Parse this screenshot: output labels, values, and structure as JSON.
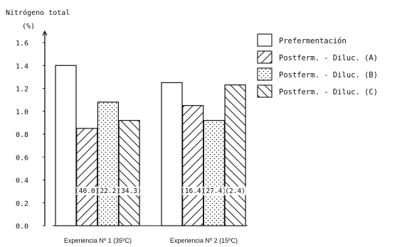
{
  "chart_data": {
    "type": "bar",
    "ylabel_line1": "Nitrógeno total",
    "ylabel_line2": "(%)",
    "ylim": [
      0,
      1.6
    ],
    "yticks": [
      "0.0",
      "0.2",
      "0.4",
      "0.6",
      "0.8",
      "1.0",
      "1.2",
      "1.4",
      "1.6"
    ],
    "categories": [
      "Experiencia Nº 1 (35ºC)",
      "Experiencia Nº 2 (15ºC)"
    ],
    "series": [
      {
        "name": "Prefermentación",
        "values": [
          1.4,
          1.25
        ],
        "labels": [
          "",
          ""
        ],
        "pattern": "blank"
      },
      {
        "name": "Postferm. - Diluc. (A)",
        "values": [
          0.85,
          1.05
        ],
        "labels": [
          "(40.0)",
          "(16.4)"
        ],
        "pattern": "diag"
      },
      {
        "name": "Postferm. - Diluc. (B)",
        "values": [
          1.08,
          0.92
        ],
        "labels": [
          "(22.2)",
          "(27.4)"
        ],
        "pattern": "dots"
      },
      {
        "name": "Postferm. - Diluc. (C)",
        "values": [
          0.92,
          1.23
        ],
        "labels": [
          "(34.3)",
          "(2.4)"
        ],
        "pattern": "antidiag"
      }
    ],
    "legend_position": "right",
    "grid": false
  }
}
